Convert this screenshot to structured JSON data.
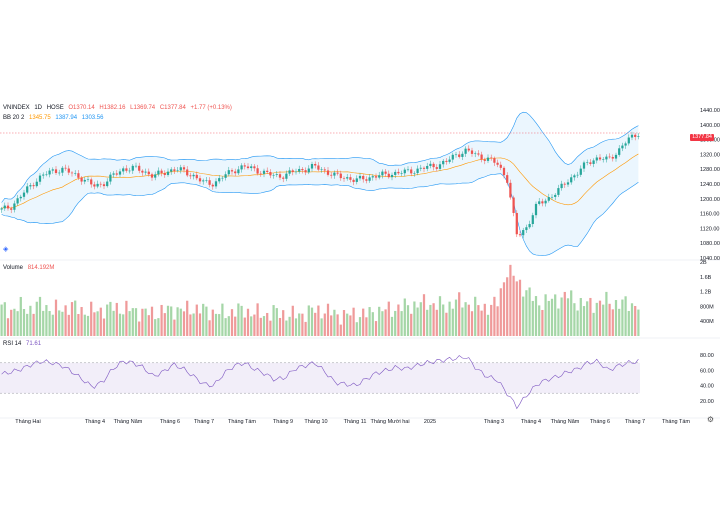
{
  "symbol": {
    "name": "VNINDEX",
    "interval": "1D",
    "exchange": "HOSE",
    "ohlc": {
      "o": "O1370.14",
      "h": "H1382.16",
      "l": "L1369.74",
      "c": "C1377.84",
      "chg": "+1.77 (+0.13%)"
    },
    "last_price": "1377.84"
  },
  "indicators": {
    "bb": {
      "label": "BB 20 2",
      "basis": "1345.75",
      "upper": "1387.94",
      "lower": "1303.56"
    },
    "volume": {
      "label": "Volume",
      "value": "814.192M"
    },
    "rsi": {
      "label": "RSI 14",
      "value": "71.61"
    }
  },
  "colors": {
    "up": "#26a69a",
    "down": "#ef5350",
    "bb_band": "#2196f3",
    "bb_fill": "#e3f2fd",
    "basis": "#ff9800",
    "rsi_line": "#7e57c2",
    "rsi_fill": "#ede7f6",
    "price_tag": "#f23645"
  },
  "icons": {
    "settings": "gear-icon",
    "logo": "tv-logo-icon"
  },
  "chart_data": {
    "type": "candlestick",
    "price_axis": {
      "ticks": [
        "1440.00",
        "1400.00",
        "1360.00",
        "1320.00",
        "1280.00",
        "1240.00",
        "1200.00",
        "1160.00",
        "1120.00",
        "1080.00",
        "1040.00"
      ],
      "ylim": [
        1040,
        1440
      ]
    },
    "volume_axis": {
      "ticks": [
        "2B",
        "1.6B",
        "1.2B",
        "800M",
        "400M"
      ],
      "ylim": [
        0,
        2
      ]
    },
    "rsi_axis": {
      "ticks": [
        "80.00",
        "60.00",
        "40.00",
        "20.00"
      ],
      "ylim": [
        0,
        100
      ],
      "bands": [
        70,
        30
      ]
    },
    "time_axis": [
      "Tháng Hai",
      "Tháng 4",
      "Tháng Năm",
      "Tháng 6",
      "Tháng 7",
      "Tháng Tám",
      "Tháng 9",
      "Tháng 10",
      "Tháng 11",
      "Tháng Mười hai",
      "2025",
      "Tháng 3",
      "Tháng 4",
      "Tháng Năm",
      "Tháng 6",
      "Tháng 7",
      "Tháng Tám"
    ],
    "close_path": [
      1170,
      1180,
      1210,
      1240,
      1262,
      1275,
      1280,
      1268,
      1255,
      1235,
      1240,
      1262,
      1280,
      1283,
      1275,
      1262,
      1270,
      1280,
      1275,
      1262,
      1243,
      1242,
      1262,
      1278,
      1287,
      1280,
      1270,
      1262,
      1263,
      1275,
      1280,
      1287,
      1275,
      1262,
      1258,
      1250,
      1255,
      1262,
      1265,
      1270,
      1272,
      1278,
      1285,
      1290,
      1300,
      1320,
      1330,
      1318,
      1308,
      1296,
      1255,
      1098,
      1125,
      1185,
      1200,
      1220,
      1250,
      1270,
      1300,
      1310,
      1305,
      1330,
      1360,
      1378
    ],
    "volume_path": [
      0.75,
      0.7,
      0.8,
      0.72,
      0.9,
      0.68,
      0.75,
      0.8,
      0.7,
      0.66,
      0.72,
      0.78,
      0.74,
      0.7,
      0.65,
      0.6,
      0.68,
      0.72,
      0.7,
      0.75,
      0.7,
      0.65,
      0.6,
      0.68,
      0.7,
      0.62,
      0.58,
      0.65,
      0.6,
      0.55,
      0.62,
      0.7,
      0.68,
      0.6,
      0.55,
      0.6,
      0.58,
      0.66,
      0.7,
      0.75,
      0.8,
      0.85,
      0.9,
      0.85,
      0.8,
      0.95,
      0.9,
      0.8,
      0.78,
      0.85,
      1.8,
      1.5,
      1.2,
      0.9,
      0.95,
      1.0,
      1.1,
      0.9,
      0.85,
      0.9,
      0.95,
      0.85,
      0.9,
      0.81
    ],
    "rsi_path": [
      55,
      58,
      62,
      68,
      72,
      70,
      66,
      58,
      48,
      38,
      45,
      62,
      72,
      70,
      64,
      52,
      58,
      68,
      62,
      52,
      42,
      40,
      56,
      66,
      70,
      62,
      56,
      48,
      50,
      62,
      66,
      70,
      58,
      44,
      42,
      40,
      48,
      56,
      60,
      64,
      62,
      66,
      70,
      72,
      74,
      76,
      78,
      62,
      52,
      48,
      30,
      12,
      28,
      42,
      48,
      52,
      58,
      62,
      70,
      72,
      60,
      66,
      70,
      72
    ]
  }
}
